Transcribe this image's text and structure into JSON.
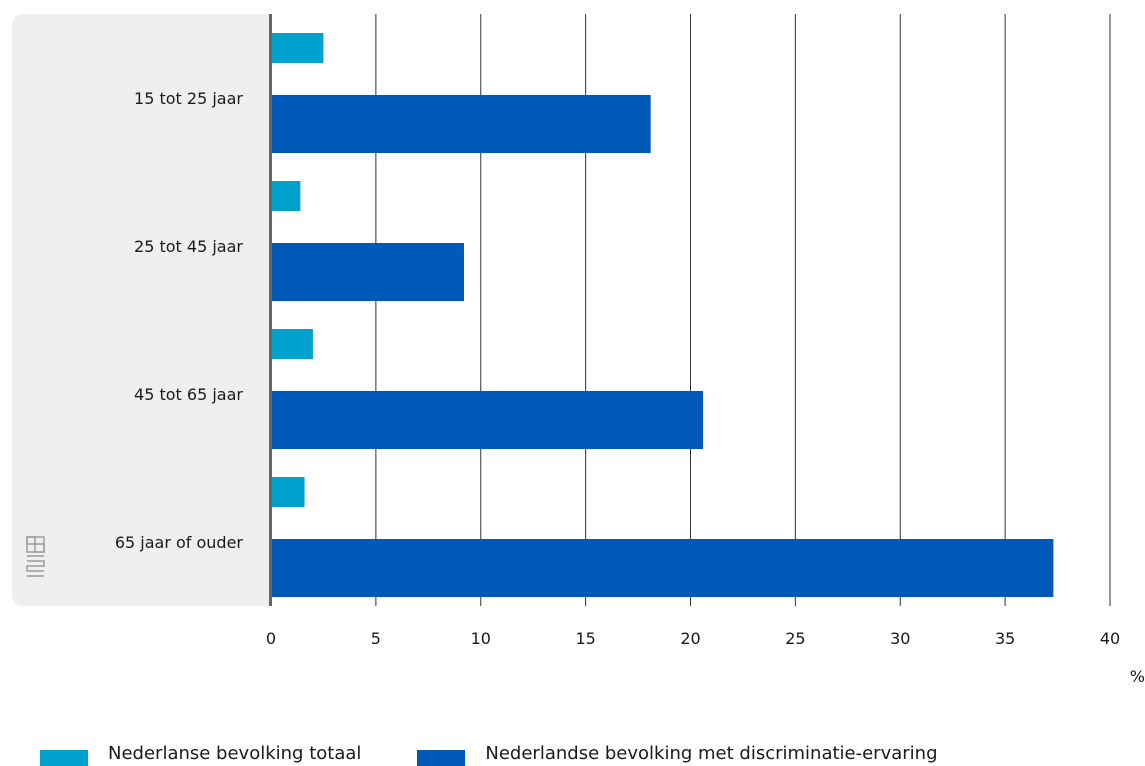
{
  "chart_data": {
    "type": "bar",
    "orientation": "horizontal",
    "categories": [
      "15 tot 25 jaar",
      "25 tot 45 jaar",
      "45 tot 65 jaar",
      "65 jaar of ouder"
    ],
    "series": [
      {
        "name": "Nederlanse bevolking totaal",
        "values": [
          2.5,
          1.4,
          2.0,
          1.6
        ],
        "color": "#00a1cd"
      },
      {
        "name": "Nederlandse bevolking met discriminatie-ervaring",
        "values": [
          18.1,
          9.2,
          20.6,
          37.3
        ],
        "color": "#0058b8"
      }
    ],
    "xlim": [
      0,
      40
    ],
    "xticks": [
      "0",
      "5",
      "10",
      "15",
      "20",
      "25",
      "30",
      "35",
      "40"
    ],
    "xunit": "%",
    "grid": true,
    "legend_position": "bottom"
  },
  "colors": {
    "label_panel": "#efefef",
    "axis": "#666666",
    "grid": "#333333",
    "logo": "#999999"
  },
  "icons": {
    "logo": "cbs-logo-icon"
  }
}
